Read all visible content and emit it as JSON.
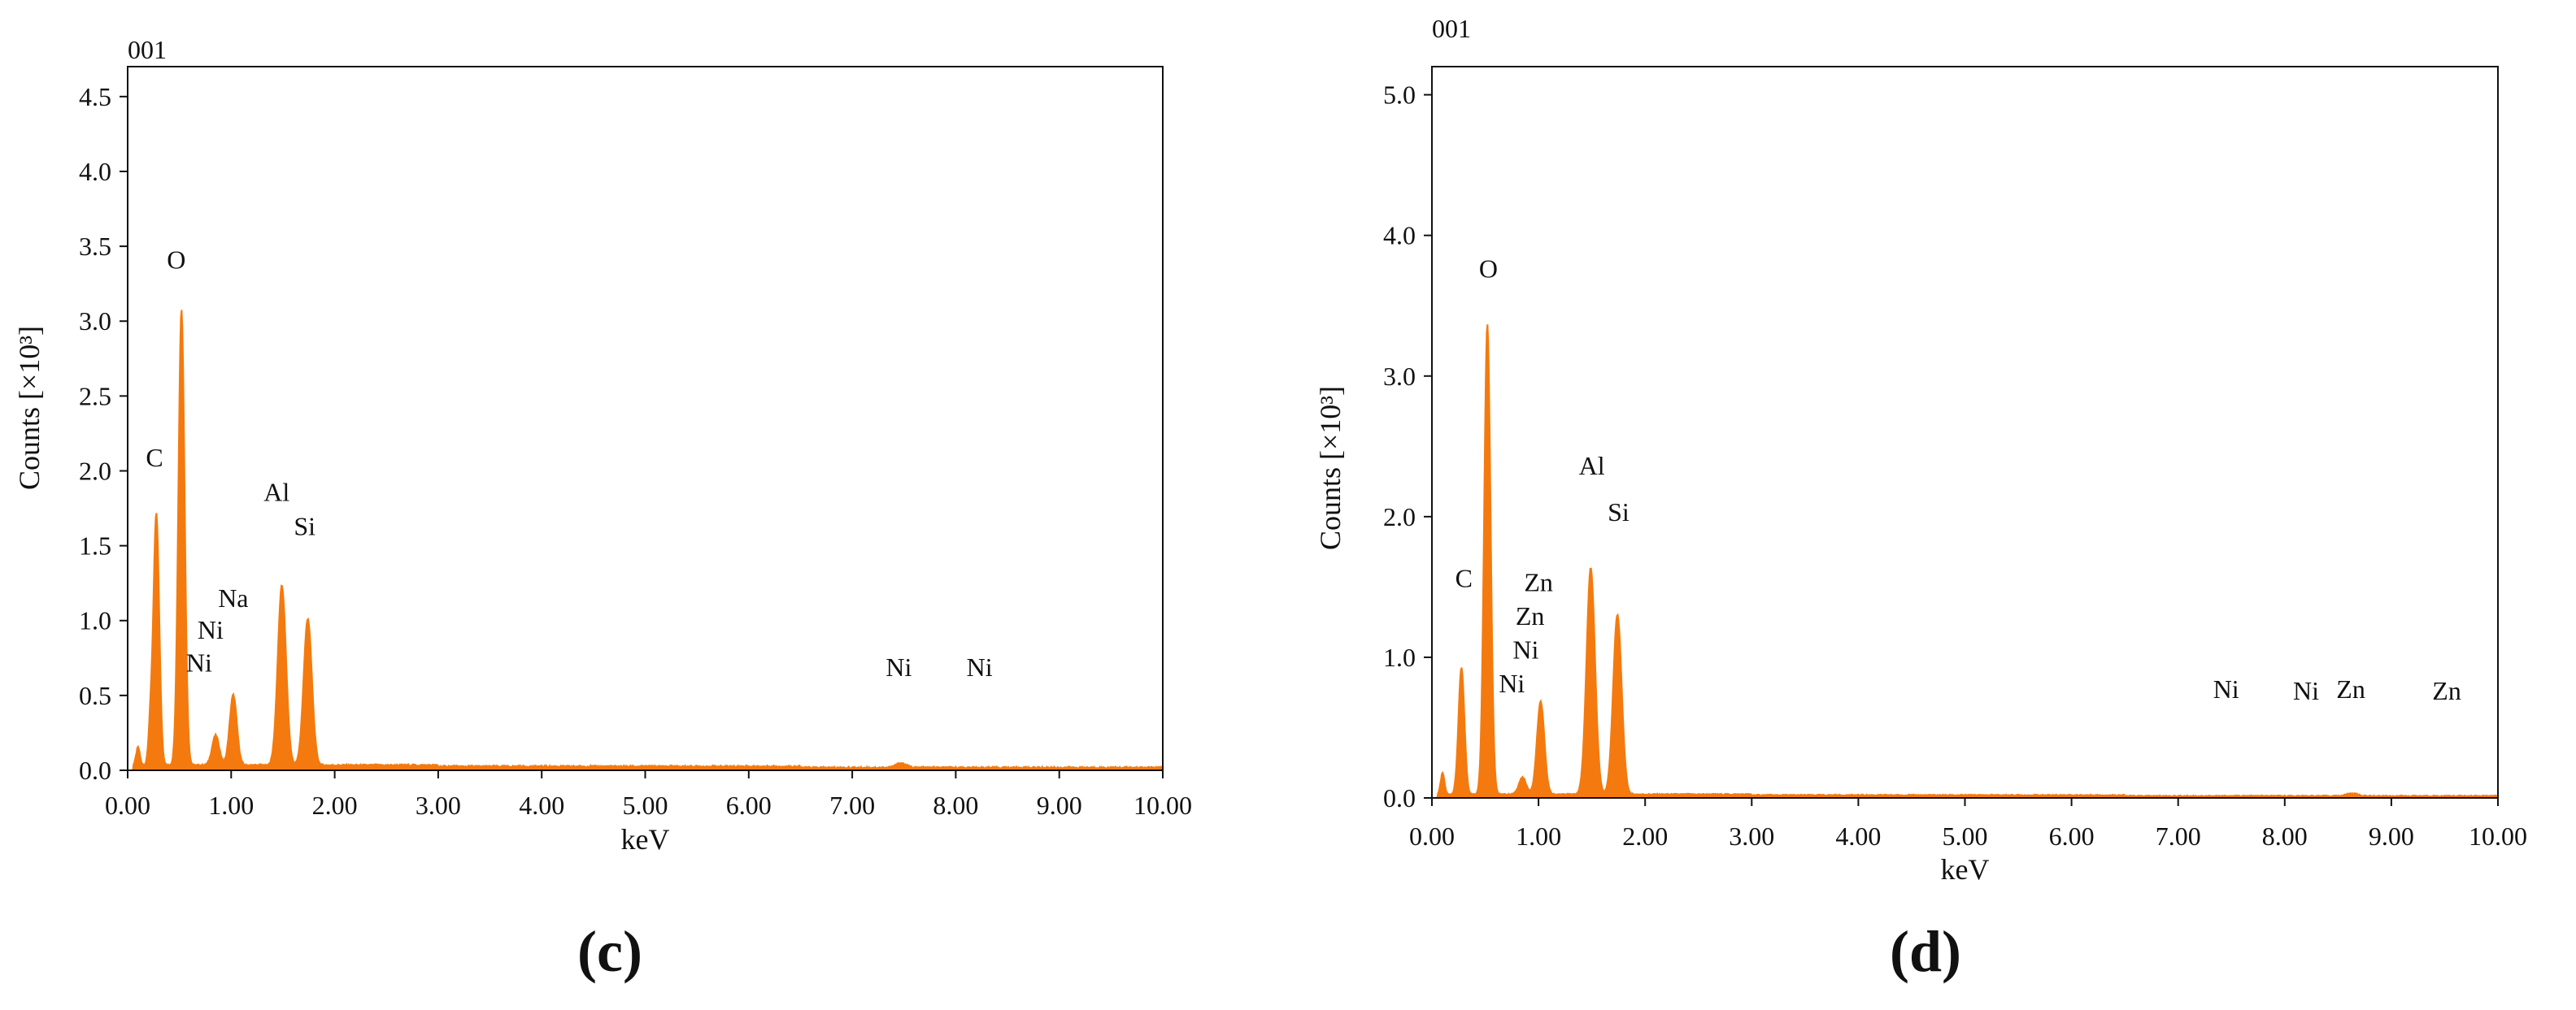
{
  "chart_data": [
    {
      "type": "area",
      "sample_id": "001",
      "panel_label": "(c)",
      "xlabel": "keV",
      "ylabel": "Counts [×10³]",
      "xlim": [
        0,
        10
      ],
      "ylim": [
        0,
        4.7
      ],
      "x_ticks": [
        "0.00",
        "1.00",
        "2.00",
        "3.00",
        "4.00",
        "5.00",
        "6.00",
        "7.00",
        "8.00",
        "9.00",
        "10.00"
      ],
      "y_ticks": [
        "0.0",
        "0.5",
        "1.0",
        "1.5",
        "2.0",
        "2.5",
        "3.0",
        "3.5",
        "4.0",
        "4.5"
      ],
      "color": "#f47a0f",
      "peaks": [
        {
          "x": 0.1,
          "y": 0.12,
          "w": 0.018
        },
        {
          "x": 0.22,
          "y": 0.25,
          "w": 0.02
        },
        {
          "x": 0.277,
          "y": 1.68,
          "w": 0.028
        },
        {
          "x": 0.52,
          "y": 3.05,
          "w": 0.03
        },
        {
          "x": 0.85,
          "y": 0.2,
          "w": 0.035
        },
        {
          "x": 1.02,
          "y": 0.47,
          "w": 0.035
        },
        {
          "x": 1.49,
          "y": 1.2,
          "w": 0.04
        },
        {
          "x": 1.74,
          "y": 0.98,
          "w": 0.04
        },
        {
          "x": 7.47,
          "y": 0.03,
          "w": 0.05
        }
      ],
      "baseline": 0.02,
      "labels": [
        {
          "text": "O",
          "x": 0.47,
          "y": 3.35
        },
        {
          "text": "C",
          "x": 0.26,
          "y": 2.03
        },
        {
          "text": "Al",
          "x": 1.44,
          "y": 1.8
        },
        {
          "text": "Si",
          "x": 1.71,
          "y": 1.57
        },
        {
          "text": "Na",
          "x": 1.02,
          "y": 1.09
        },
        {
          "text": "Ni",
          "x": 0.8,
          "y": 0.88
        },
        {
          "text": "Ni",
          "x": 0.69,
          "y": 0.66
        },
        {
          "text": "Ni",
          "x": 7.45,
          "y": 0.63
        },
        {
          "text": "Ni",
          "x": 8.23,
          "y": 0.63
        }
      ]
    },
    {
      "type": "area",
      "sample_id": "001",
      "panel_label": "(d)",
      "xlabel": "keV",
      "ylabel": "Counts [×10³]",
      "xlim": [
        0,
        10
      ],
      "ylim": [
        0,
        5.2
      ],
      "x_ticks": [
        "0.00",
        "1.00",
        "2.00",
        "3.00",
        "4.00",
        "5.00",
        "6.00",
        "7.00",
        "8.00",
        "9.00",
        "10.00"
      ],
      "y_ticks": [
        "0.0",
        "1.0",
        "2.0",
        "3.0",
        "4.0",
        "5.0"
      ],
      "color": "#f47a0f",
      "peaks": [
        {
          "x": 0.1,
          "y": 0.15,
          "w": 0.018
        },
        {
          "x": 0.277,
          "y": 0.9,
          "w": 0.028
        },
        {
          "x": 0.52,
          "y": 3.35,
          "w": 0.03
        },
        {
          "x": 0.85,
          "y": 0.12,
          "w": 0.035
        },
        {
          "x": 1.02,
          "y": 0.66,
          "w": 0.035
        },
        {
          "x": 1.49,
          "y": 1.61,
          "w": 0.04
        },
        {
          "x": 1.74,
          "y": 1.28,
          "w": 0.04
        },
        {
          "x": 8.63,
          "y": 0.02,
          "w": 0.05
        }
      ],
      "baseline": 0.015,
      "labels": [
        {
          "text": "O",
          "x": 0.53,
          "y": 3.7
        },
        {
          "text": "Al",
          "x": 1.5,
          "y": 2.3
        },
        {
          "text": "Si",
          "x": 1.75,
          "y": 1.97
        },
        {
          "text": "C",
          "x": 0.3,
          "y": 1.5
        },
        {
          "text": "Zn",
          "x": 1.0,
          "y": 1.47
        },
        {
          "text": "Zn",
          "x": 0.92,
          "y": 1.23
        },
        {
          "text": "Ni",
          "x": 0.88,
          "y": 0.99
        },
        {
          "text": "Ni",
          "x": 0.75,
          "y": 0.75
        },
        {
          "text": "Ni",
          "x": 7.45,
          "y": 0.71
        },
        {
          "text": "Ni",
          "x": 8.2,
          "y": 0.7
        },
        {
          "text": "Zn",
          "x": 8.62,
          "y": 0.71
        },
        {
          "text": "Zn",
          "x": 9.52,
          "y": 0.7
        }
      ]
    }
  ]
}
